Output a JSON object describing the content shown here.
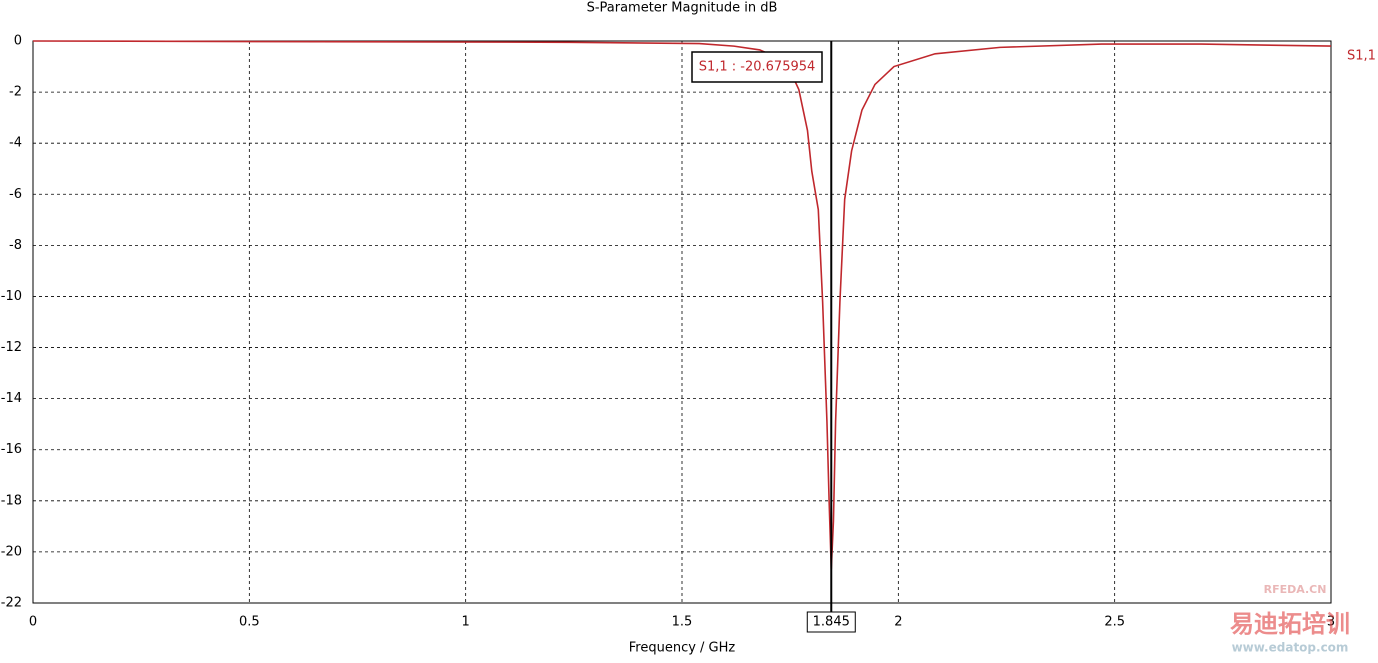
{
  "chart_data": {
    "type": "line",
    "title": "S-Parameter Magnitude in dB",
    "x_label": "Frequency / GHz",
    "x": [
      0,
      1.24,
      1.54,
      1.62,
      1.68,
      1.74,
      1.77,
      1.79,
      1.8,
      1.815,
      1.825,
      1.835,
      1.84,
      1.845,
      1.85,
      1.855,
      1.865,
      1.876,
      1.892,
      1.916,
      1.946,
      1.99,
      2.085,
      2.235,
      2.47,
      2.7,
      3
    ],
    "series": [
      {
        "name": "S1,1",
        "color": "#c0282d",
        "values": [
          0,
          -0.05,
          -0.1,
          -0.2,
          -0.35,
          -0.8,
          -1.9,
          -3.5,
          -5.1,
          -6.6,
          -10.2,
          -14.9,
          -18,
          -20.675954,
          -18.8,
          -14.9,
          -10.2,
          -6.2,
          -4.3,
          -2.7,
          -1.7,
          -1.0,
          -0.5,
          -0.25,
          -0.12,
          -0.12,
          -0.2
        ]
      }
    ],
    "xlim": [
      0,
      3
    ],
    "xticks": [
      0,
      0.5,
      1,
      1.5,
      2,
      2.5,
      3
    ],
    "ylim": [
      -22,
      0
    ],
    "yticks": [
      0,
      -2,
      -4,
      -6,
      -8,
      -10,
      -12,
      -14,
      -16,
      -18,
      -20,
      -22
    ],
    "grid": true,
    "marker": {
      "x": 1.845,
      "label": "S1,1 : -20.675954"
    },
    "watermark": [
      "RFEDA.CN",
      "易迪拓培训",
      "www.edatop.com"
    ]
  }
}
